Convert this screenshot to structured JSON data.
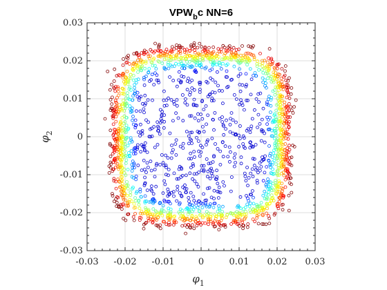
{
  "chart_data": {
    "type": "scatter",
    "title_main": "VPW",
    "title_sub": "b",
    "title_tail": "c NN=6",
    "xlabel_symbol": "φ",
    "xlabel_sub": "1",
    "ylabel_symbol": "φ",
    "ylabel_sub": "2",
    "xlim": [
      -0.03,
      0.03
    ],
    "ylim": [
      -0.03,
      0.03
    ],
    "xticks": [
      -0.03,
      -0.02,
      -0.01,
      0,
      0.01,
      0.02,
      0.03
    ],
    "yticks": [
      -0.03,
      -0.02,
      -0.01,
      0,
      0.01,
      0.02,
      0.03
    ],
    "xtick_labels": [
      "-0.03",
      "-0.02",
      "-0.01",
      "0",
      "0.01",
      "0.02",
      "0.03"
    ],
    "ytick_labels": [
      "-0.03",
      "-0.02",
      "-0.01",
      "0",
      "0.01",
      "0.02",
      "0.03"
    ],
    "grid": true,
    "marker": "open-circle",
    "colormap": "jet",
    "color_variable": "radial distance from origin (blue = inner, red = outer)",
    "point_cloud": {
      "shape": "rounded square (superellipse)",
      "outer_half_width": 0.024,
      "dense_ring_half_width": 0.021,
      "inner_sparse_region_half_width": 0.017,
      "approx_point_count": 1500
    },
    "colors": {
      "inner": "#0000cc",
      "mid": "#00bfff",
      "ring": "#ffd000",
      "outer": "#e00000"
    }
  }
}
